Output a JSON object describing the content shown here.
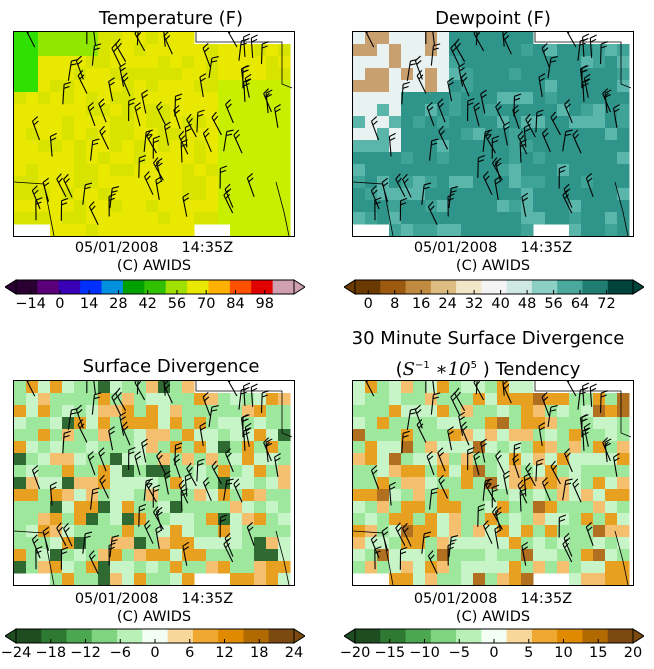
{
  "chart_data": [
    {
      "type": "heatmap",
      "title": "Temperature (F)",
      "timestamp_date": "05/01/2008",
      "timestamp_time": "14:35Z",
      "credit": "(C) AWIDS",
      "colorbar_ticks": [
        "−14",
        "0",
        "14",
        "28",
        "42",
        "56",
        "70",
        "84",
        "98"
      ],
      "colorbar_range": [
        -21,
        112
      ],
      "colors": [
        "#2a0033",
        "#5b007a",
        "#3a00b8",
        "#0030ff",
        "#0090e0",
        "#00a000",
        "#30c000",
        "#a0e000",
        "#e8e800",
        "#ffb000",
        "#ff5000",
        "#e00000",
        "#d0a0b0"
      ],
      "field_palette": [
        "#30e000",
        "#90e800",
        "#c8ee00",
        "#e8e800",
        "#d8e400"
      ]
    },
    {
      "type": "heatmap",
      "title": "Dewpoint (F)",
      "timestamp_date": "05/01/2008",
      "timestamp_time": "14:35Z",
      "credit": "(C) AWIDS",
      "colorbar_ticks": [
        "0",
        "8",
        "16",
        "24",
        "32",
        "40",
        "48",
        "56",
        "64",
        "72"
      ],
      "colorbar_range": [
        -4,
        80
      ],
      "colors": [
        "#6b3a00",
        "#9c5a10",
        "#c08a40",
        "#dcbc80",
        "#f2e6c8",
        "#f4f4f4",
        "#cfe8e4",
        "#8ccfc4",
        "#4aa89c",
        "#1f7d72",
        "#00443c"
      ],
      "field_palette": [
        "#2f9489",
        "#3fa398",
        "#5ab5aa",
        "#e8f2f0",
        "#c8a070"
      ]
    },
    {
      "type": "heatmap",
      "title": "Surface Divergence",
      "timestamp_date": "05/01/2008",
      "timestamp_time": "14:35Z",
      "credit": "(C) AWIDS",
      "colorbar_ticks": [
        "−24",
        "−18",
        "−12",
        "−6",
        "0",
        "6",
        "12",
        "18",
        "24"
      ],
      "colorbar_range": [
        -24,
        24
      ],
      "colors": [
        "#1f4d22",
        "#2f7a33",
        "#4ca850",
        "#7fd47f",
        "#b8f0b8",
        "#f4fff4",
        "#f7d89a",
        "#f0a930",
        "#e08a00",
        "#b06a00",
        "#7a4a10"
      ],
      "field_palette": [
        "#9ee89e",
        "#c8f5c8",
        "#e8a020",
        "#f4c070",
        "#2f6a32"
      ]
    },
    {
      "type": "heatmap",
      "title_line1": "30 Minute Surface Divergence",
      "title_unit_base": "S",
      "title_unit_exp": "−1",
      "title_mult": "∗10",
      "title_mult_exp": "5",
      "title_line2_suffix": ") Tendency",
      "timestamp_date": "05/01/2008",
      "timestamp_time": "14:35Z",
      "credit": "(C) AWIDS",
      "colorbar_ticks": [
        "−20",
        "−15",
        "−10",
        "−5",
        "0",
        "5",
        "10",
        "15",
        "20"
      ],
      "colorbar_range": [
        -20,
        20
      ],
      "colors": [
        "#1f4d22",
        "#2f7a33",
        "#4ca850",
        "#7fd47f",
        "#b8f0b8",
        "#f4fff4",
        "#f7d89a",
        "#f0a930",
        "#e08a00",
        "#b06a00",
        "#7a4a10"
      ],
      "field_palette": [
        "#9ee89e",
        "#c8f5c8",
        "#e8a020",
        "#f4c070",
        "#b07020"
      ]
    }
  ]
}
